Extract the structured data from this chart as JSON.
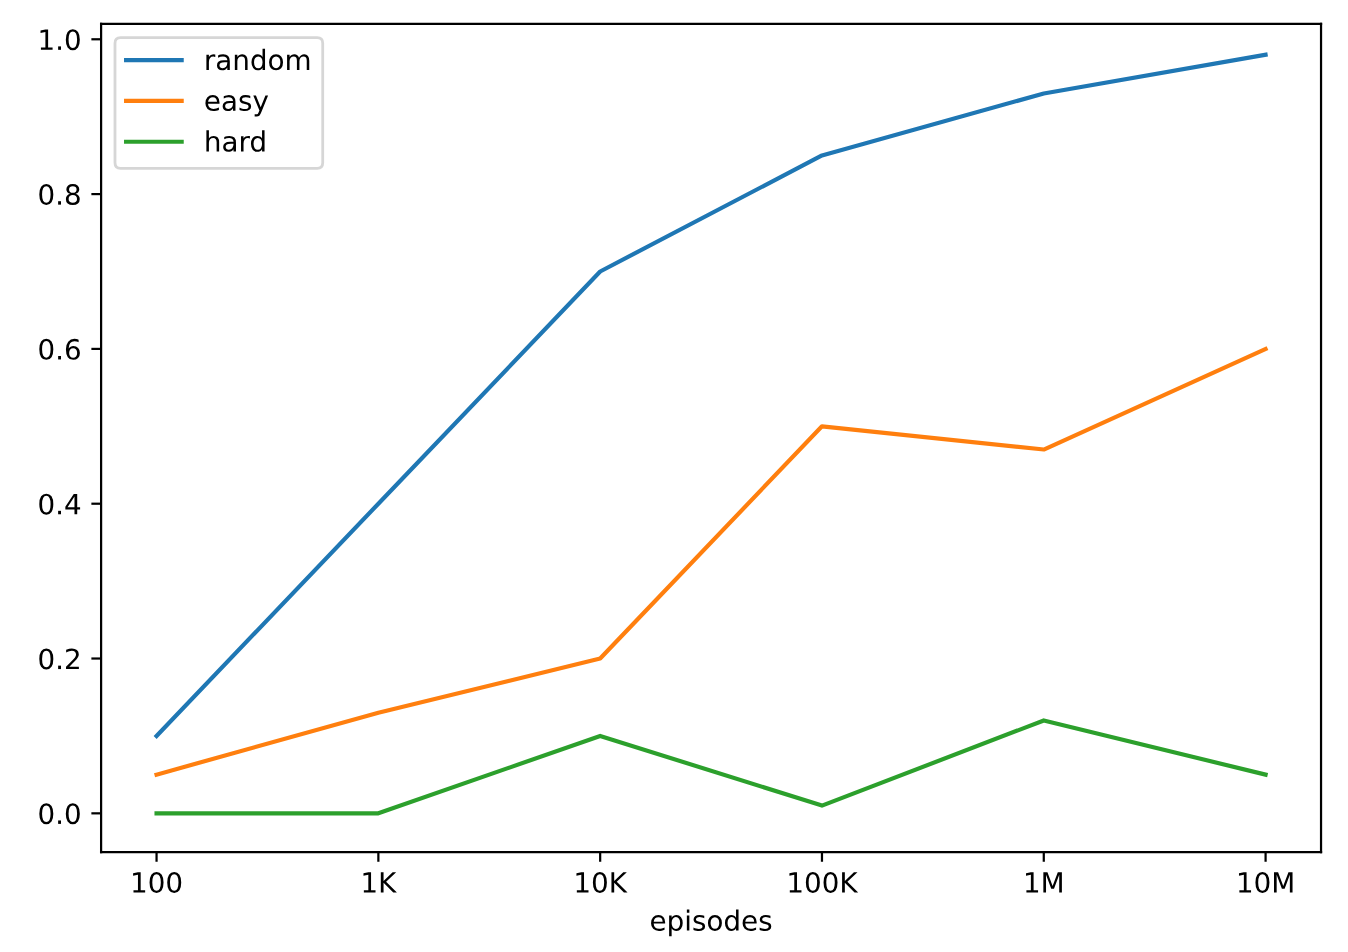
{
  "chart_data": {
    "type": "line",
    "xlabel": "episodes",
    "categories": [
      "100",
      "1K",
      "10K",
      "100K",
      "1M",
      "10M"
    ],
    "series": [
      {
        "name": "random",
        "color": "#1f77b4",
        "values": [
          0.1,
          0.4,
          0.7,
          0.85,
          0.93,
          0.98
        ]
      },
      {
        "name": "easy",
        "color": "#ff7f0e",
        "values": [
          0.05,
          0.13,
          0.2,
          0.5,
          0.47,
          0.6
        ]
      },
      {
        "name": "hard",
        "color": "#2ca02c",
        "values": [
          0.0,
          0.0,
          0.1,
          0.01,
          0.12,
          0.05
        ]
      }
    ],
    "ylim": [
      -0.05,
      1.02
    ],
    "yticks": [
      {
        "value": 0,
        "label": "0.0"
      },
      0.2,
      0.4,
      0.6,
      0.8,
      {
        "value": 1,
        "label": "1.0"
      }
    ],
    "legend": "top left",
    "grid": false
  }
}
